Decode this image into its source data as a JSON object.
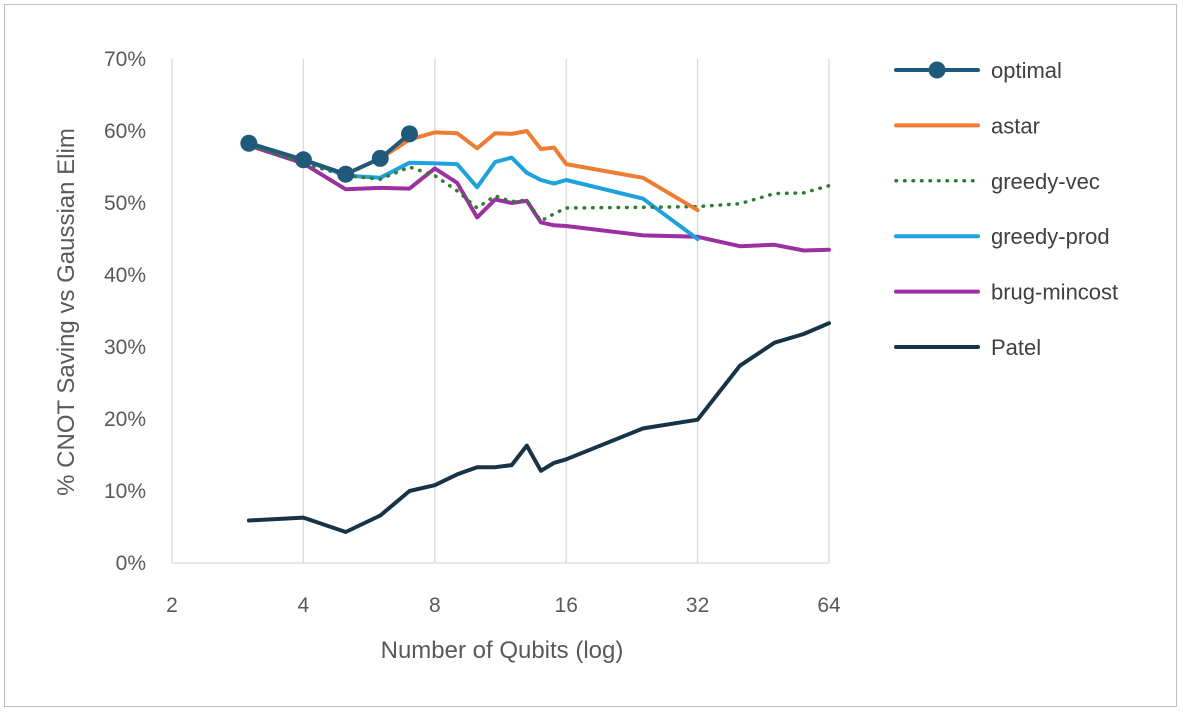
{
  "chart_data": {
    "type": "line",
    "title": "",
    "xlabel": "Number of Qubits (log)",
    "ylabel": "% CNOT Saving vs Gaussian Elim",
    "x_scale": "log2",
    "xlim": [
      2,
      64
    ],
    "ylim": [
      0,
      70
    ],
    "x_ticks": [
      2,
      4,
      8,
      16,
      32,
      64
    ],
    "x_tick_labels": [
      "2",
      "4",
      "8",
      "16",
      "32",
      "64"
    ],
    "y_ticks": [
      0,
      10,
      20,
      30,
      40,
      50,
      60,
      70
    ],
    "y_tick_labels": [
      "0%",
      "10%",
      "20%",
      "30%",
      "40%",
      "50%",
      "60%",
      "70%"
    ],
    "grid": "vertical",
    "legend_position": "right",
    "series": [
      {
        "name": "optimal",
        "color": "#1f5a7a",
        "style": "solid-markers",
        "x": [
          3,
          4,
          5,
          6,
          7
        ],
        "y": [
          58.3,
          56.0,
          54.0,
          56.2,
          59.6
        ]
      },
      {
        "name": "astar",
        "color": "#ed7d31",
        "style": "solid",
        "x": [
          3,
          4,
          5,
          6,
          7,
          8,
          9,
          10,
          11,
          12,
          13,
          14,
          15,
          16,
          24,
          32
        ],
        "y": [
          58.3,
          56.0,
          54.0,
          56.2,
          58.8,
          59.8,
          59.7,
          57.6,
          59.7,
          59.6,
          60.0,
          57.5,
          57.7,
          55.4,
          53.5,
          49.0
        ]
      },
      {
        "name": "greedy-vec",
        "color": "#2e7d32",
        "style": "dotted",
        "x": [
          3,
          4,
          5,
          6,
          7,
          8,
          9,
          10,
          11,
          12,
          13,
          14,
          15,
          16,
          24,
          32,
          40,
          48,
          56,
          64
        ],
        "y": [
          58.0,
          55.5,
          53.8,
          53.3,
          55.0,
          53.8,
          51.7,
          49.3,
          51.0,
          50.2,
          50.4,
          47.5,
          48.5,
          49.3,
          49.4,
          49.5,
          49.9,
          51.3,
          51.4,
          52.4
        ]
      },
      {
        "name": "greedy-prod",
        "color": "#1ea1dc",
        "style": "solid",
        "x": [
          3,
          4,
          5,
          6,
          7,
          8,
          9,
          10,
          11,
          12,
          13,
          14,
          15,
          16,
          24,
          32
        ],
        "y": [
          58.3,
          56.0,
          53.8,
          53.5,
          55.6,
          55.5,
          55.4,
          52.2,
          55.7,
          56.3,
          54.2,
          53.2,
          52.7,
          53.2,
          50.6,
          45.0
        ]
      },
      {
        "name": "brug-mincost",
        "color": "#9b30a0",
        "style": "solid",
        "x": [
          3,
          4,
          5,
          6,
          7,
          8,
          9,
          10,
          11,
          12,
          13,
          14,
          15,
          16,
          24,
          32,
          40,
          48,
          56,
          64
        ],
        "y": [
          58.0,
          55.5,
          51.9,
          52.1,
          52.0,
          54.8,
          52.8,
          48.0,
          50.5,
          50.0,
          50.3,
          47.3,
          46.9,
          46.8,
          45.5,
          45.3,
          44.0,
          44.2,
          43.4,
          43.5
        ]
      },
      {
        "name": "Patel",
        "color": "#163446",
        "style": "solid",
        "x": [
          3,
          4,
          5,
          6,
          7,
          8,
          9,
          10,
          11,
          12,
          13,
          14,
          15,
          16,
          24,
          32,
          40,
          48,
          56,
          64
        ],
        "y": [
          5.9,
          6.3,
          4.3,
          6.6,
          10.0,
          10.8,
          12.3,
          13.3,
          13.3,
          13.6,
          16.3,
          12.8,
          13.9,
          14.4,
          18.7,
          19.9,
          27.4,
          30.6,
          31.8,
          33.3
        ]
      }
    ]
  }
}
